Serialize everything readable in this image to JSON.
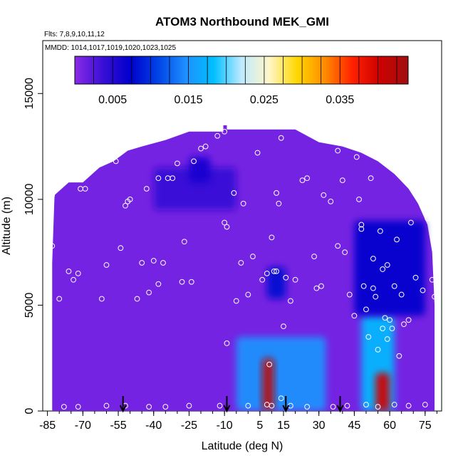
{
  "chart_data": {
    "type": "heatmap",
    "title": "ATOM3 Northbound MEK_GMI",
    "flights_label": "Flts: 7,8,9,10,11,12",
    "dates_label": "MMDD: 1014,1017,1019,1020,1023,1025",
    "xlabel": "Latitude (deg N)",
    "ylabel": "Altitude (m)",
    "xlim": [
      -87,
      82
    ],
    "ylim": [
      0,
      17500
    ],
    "x_ticks": [
      "-85",
      "-70",
      "-55",
      "-40",
      "-25",
      "-10",
      "5",
      "15",
      "30",
      "45",
      "60",
      "75"
    ],
    "y_ticks": [
      "0",
      "5000",
      "10000",
      "15000"
    ],
    "colorbar": {
      "min": 0.0,
      "max": 0.044,
      "tick_labels": [
        "0.005",
        "0.015",
        "0.025",
        "0.035"
      ],
      "tick_values": [
        0.005,
        0.015,
        0.025,
        0.035
      ],
      "colors": [
        "#8b2be6",
        "#3a0fd6",
        "#0000cc",
        "#0044e6",
        "#1f90ff",
        "#00bfff",
        "#bfeaff",
        "#fff6c8",
        "#ffd700",
        "#ff8c00",
        "#ff2000",
        "#cc0000",
        "#a01010"
      ]
    },
    "coverage_top": [
      {
        "lat": -82,
        "alt": 10200
      },
      {
        "lat": -76,
        "alt": 10800
      },
      {
        "lat": -70,
        "alt": 10800
      },
      {
        "lat": -63,
        "alt": 11500
      },
      {
        "lat": -57,
        "alt": 11800
      },
      {
        "lat": -51,
        "alt": 12300
      },
      {
        "lat": -45,
        "alt": 12500
      },
      {
        "lat": -35,
        "alt": 12800
      },
      {
        "lat": -25,
        "alt": 13200
      },
      {
        "lat": -15,
        "alt": 13200
      },
      {
        "lat": -10.5,
        "alt": 13200
      },
      {
        "lat": -10.5,
        "alt": 13500
      },
      {
        "lat": -9,
        "alt": 13500
      },
      {
        "lat": -9,
        "alt": 13300
      },
      {
        "lat": 5,
        "alt": 13300
      },
      {
        "lat": 20,
        "alt": 13300
      },
      {
        "lat": 30,
        "alt": 12700
      },
      {
        "lat": 40,
        "alt": 12500
      },
      {
        "lat": 48,
        "alt": 12200
      },
      {
        "lat": 55,
        "alt": 11800
      },
      {
        "lat": 62,
        "alt": 11200
      },
      {
        "lat": 68,
        "alt": 10500
      },
      {
        "lat": 72,
        "alt": 9800
      },
      {
        "lat": 76,
        "alt": 8800
      },
      {
        "lat": 78,
        "alt": 7500
      },
      {
        "lat": 79,
        "alt": 5000
      }
    ],
    "coverage_bottom_left": [
      {
        "lat": -83,
        "alt": 0
      },
      {
        "lat": -83,
        "alt": 7000
      },
      {
        "lat": -82,
        "alt": 10200
      }
    ],
    "coverage_bottom_right": [
      {
        "lat": 79,
        "alt": 0
      }
    ],
    "features": [
      {
        "name": "sh-high-band",
        "lat": [
          -40,
          -5
        ],
        "alt": [
          9500,
          11500
        ],
        "value": 0.004
      },
      {
        "name": "sh-tropopause",
        "lat": [
          -25,
          -16
        ],
        "alt": [
          10800,
          12000
        ],
        "value": 0.006
      },
      {
        "name": "tropical-mid",
        "lat": [
          8,
          16
        ],
        "alt": [
          5300,
          6800
        ],
        "value": 0.008
      },
      {
        "name": "tropical-core",
        "lat": [
          -5,
          33
        ],
        "alt": [
          0,
          3500
        ],
        "value": 0.015
      },
      {
        "name": "tropical-peak",
        "lat": [
          6,
          11
        ],
        "alt": [
          0,
          2500
        ],
        "value": 0.042
      },
      {
        "name": "nh-column",
        "lat": [
          48,
          62
        ],
        "alt": [
          0,
          4500
        ],
        "value": 0.018
      },
      {
        "name": "nh-peak",
        "lat": [
          54,
          60
        ],
        "alt": [
          0,
          1800
        ],
        "value": 0.04
      },
      {
        "name": "nh-upper",
        "lat": [
          45,
          75
        ],
        "alt": [
          4500,
          9000
        ],
        "value": 0.007
      }
    ],
    "observations": [
      {
        "lat": -83,
        "alt": 10200
      },
      {
        "lat": -83,
        "alt": 7800
      },
      {
        "lat": -80,
        "alt": 5300
      },
      {
        "lat": -76,
        "alt": 6600
      },
      {
        "lat": -74,
        "alt": 6200
      },
      {
        "lat": -72,
        "alt": 6500
      },
      {
        "lat": -71,
        "alt": 10500
      },
      {
        "lat": -69,
        "alt": 10500
      },
      {
        "lat": -62,
        "alt": 5300
      },
      {
        "lat": -60,
        "alt": 6900
      },
      {
        "lat": -56,
        "alt": 11800
      },
      {
        "lat": -54,
        "alt": 7700
      },
      {
        "lat": -52,
        "alt": 9700
      },
      {
        "lat": -51,
        "alt": 9900
      },
      {
        "lat": -50,
        "alt": 10000
      },
      {
        "lat": -47,
        "alt": 5300
      },
      {
        "lat": -45,
        "alt": 7000
      },
      {
        "lat": -43,
        "alt": 10500
      },
      {
        "lat": -42,
        "alt": 5600
      },
      {
        "lat": -40,
        "alt": 7100
      },
      {
        "lat": -38,
        "alt": 11000
      },
      {
        "lat": -38,
        "alt": 6000
      },
      {
        "lat": -36,
        "alt": 7000
      },
      {
        "lat": -34,
        "alt": 11000
      },
      {
        "lat": -32,
        "alt": 11000
      },
      {
        "lat": -30,
        "alt": 11700
      },
      {
        "lat": -28,
        "alt": 6100
      },
      {
        "lat": -27,
        "alt": 8000
      },
      {
        "lat": -24,
        "alt": 6100
      },
      {
        "lat": -23,
        "alt": 11800
      },
      {
        "lat": -20,
        "alt": 12400
      },
      {
        "lat": -18,
        "alt": 12500
      },
      {
        "lat": -13,
        "alt": 13000
      },
      {
        "lat": -10,
        "alt": 13200
      },
      {
        "lat": -10,
        "alt": 8900
      },
      {
        "lat": -9,
        "alt": 8700
      },
      {
        "lat": -9,
        "alt": 3200
      },
      {
        "lat": -6,
        "alt": 10300
      },
      {
        "lat": -5,
        "alt": 5200
      },
      {
        "lat": -3,
        "alt": 7000
      },
      {
        "lat": -2,
        "alt": 9800
      },
      {
        "lat": 0,
        "alt": 5500
      },
      {
        "lat": 2,
        "alt": 7300
      },
      {
        "lat": 4,
        "alt": 12200
      },
      {
        "lat": 6,
        "alt": 6200
      },
      {
        "lat": 8,
        "alt": 6500
      },
      {
        "lat": 9,
        "alt": 2200
      },
      {
        "lat": 10,
        "alt": 8200
      },
      {
        "lat": 11,
        "alt": 6600
      },
      {
        "lat": 12,
        "alt": 6600
      },
      {
        "lat": 12,
        "alt": 10300
      },
      {
        "lat": 13,
        "alt": 9800
      },
      {
        "lat": 14,
        "alt": 12900
      },
      {
        "lat": 15,
        "alt": 4000
      },
      {
        "lat": 16,
        "alt": 6300
      },
      {
        "lat": 18,
        "alt": 5200
      },
      {
        "lat": 20,
        "alt": 6200
      },
      {
        "lat": 23,
        "alt": 10900
      },
      {
        "lat": 25,
        "alt": 11000
      },
      {
        "lat": 28,
        "alt": 7300
      },
      {
        "lat": 29,
        "alt": 5800
      },
      {
        "lat": 31,
        "alt": 5900
      },
      {
        "lat": 32,
        "alt": 10200
      },
      {
        "lat": 35,
        "alt": 9900
      },
      {
        "lat": 38,
        "alt": 7800
      },
      {
        "lat": 38,
        "alt": 12300
      },
      {
        "lat": 40,
        "alt": 10900
      },
      {
        "lat": 41,
        "alt": 7500
      },
      {
        "lat": 43,
        "alt": 5500
      },
      {
        "lat": 45,
        "alt": 4500
      },
      {
        "lat": 46,
        "alt": 12000
      },
      {
        "lat": 47,
        "alt": 10000
      },
      {
        "lat": 48,
        "alt": 8800
      },
      {
        "lat": 48,
        "alt": 8600
      },
      {
        "lat": 49,
        "alt": 5900
      },
      {
        "lat": 50,
        "alt": 4800
      },
      {
        "lat": 51,
        "alt": 3500
      },
      {
        "lat": 52,
        "alt": 11000
      },
      {
        "lat": 53,
        "alt": 7200
      },
      {
        "lat": 53,
        "alt": 5800
      },
      {
        "lat": 54,
        "alt": 5400
      },
      {
        "lat": 55,
        "alt": 2900
      },
      {
        "lat": 56,
        "alt": 8500
      },
      {
        "lat": 57,
        "alt": 6700
      },
      {
        "lat": 57,
        "alt": 3900
      },
      {
        "lat": 58,
        "alt": 4400
      },
      {
        "lat": 59,
        "alt": 6900
      },
      {
        "lat": 59,
        "alt": 3400
      },
      {
        "lat": 60,
        "alt": 4300
      },
      {
        "lat": 61,
        "alt": 3900
      },
      {
        "lat": 62,
        "alt": 5900
      },
      {
        "lat": 63,
        "alt": 8100
      },
      {
        "lat": 64,
        "alt": 2600
      },
      {
        "lat": 65,
        "alt": 5500
      },
      {
        "lat": 66,
        "alt": 4100
      },
      {
        "lat": 68,
        "alt": 4300
      },
      {
        "lat": 69,
        "alt": 8900
      },
      {
        "lat": 71,
        "alt": 6300
      },
      {
        "lat": 74,
        "alt": 5700
      },
      {
        "lat": 76,
        "alt": 9100
      },
      {
        "lat": 78,
        "alt": 6200
      },
      {
        "lat": 79,
        "alt": 5400
      },
      {
        "lat": -78,
        "alt": 200
      },
      {
        "lat": -72,
        "alt": 200
      },
      {
        "lat": -60,
        "alt": 250
      },
      {
        "lat": -52,
        "alt": 250
      },
      {
        "lat": -42,
        "alt": 200
      },
      {
        "lat": -35,
        "alt": 200
      },
      {
        "lat": -25,
        "alt": 250
      },
      {
        "lat": -12,
        "alt": 250
      },
      {
        "lat": 0,
        "alt": 250
      },
      {
        "lat": 8,
        "alt": 300
      },
      {
        "lat": 10,
        "alt": 250
      },
      {
        "lat": 14,
        "alt": 600
      },
      {
        "lat": 18,
        "alt": 250
      },
      {
        "lat": 25,
        "alt": 200
      },
      {
        "lat": 36,
        "alt": 200
      },
      {
        "lat": 42,
        "alt": 250
      },
      {
        "lat": 50,
        "alt": 300
      },
      {
        "lat": 55,
        "alt": 200
      },
      {
        "lat": 62,
        "alt": 300
      },
      {
        "lat": 68,
        "alt": 250
      },
      {
        "lat": 75,
        "alt": 300
      }
    ],
    "arrows_lat": [
      -53,
      -9,
      16,
      39
    ]
  }
}
